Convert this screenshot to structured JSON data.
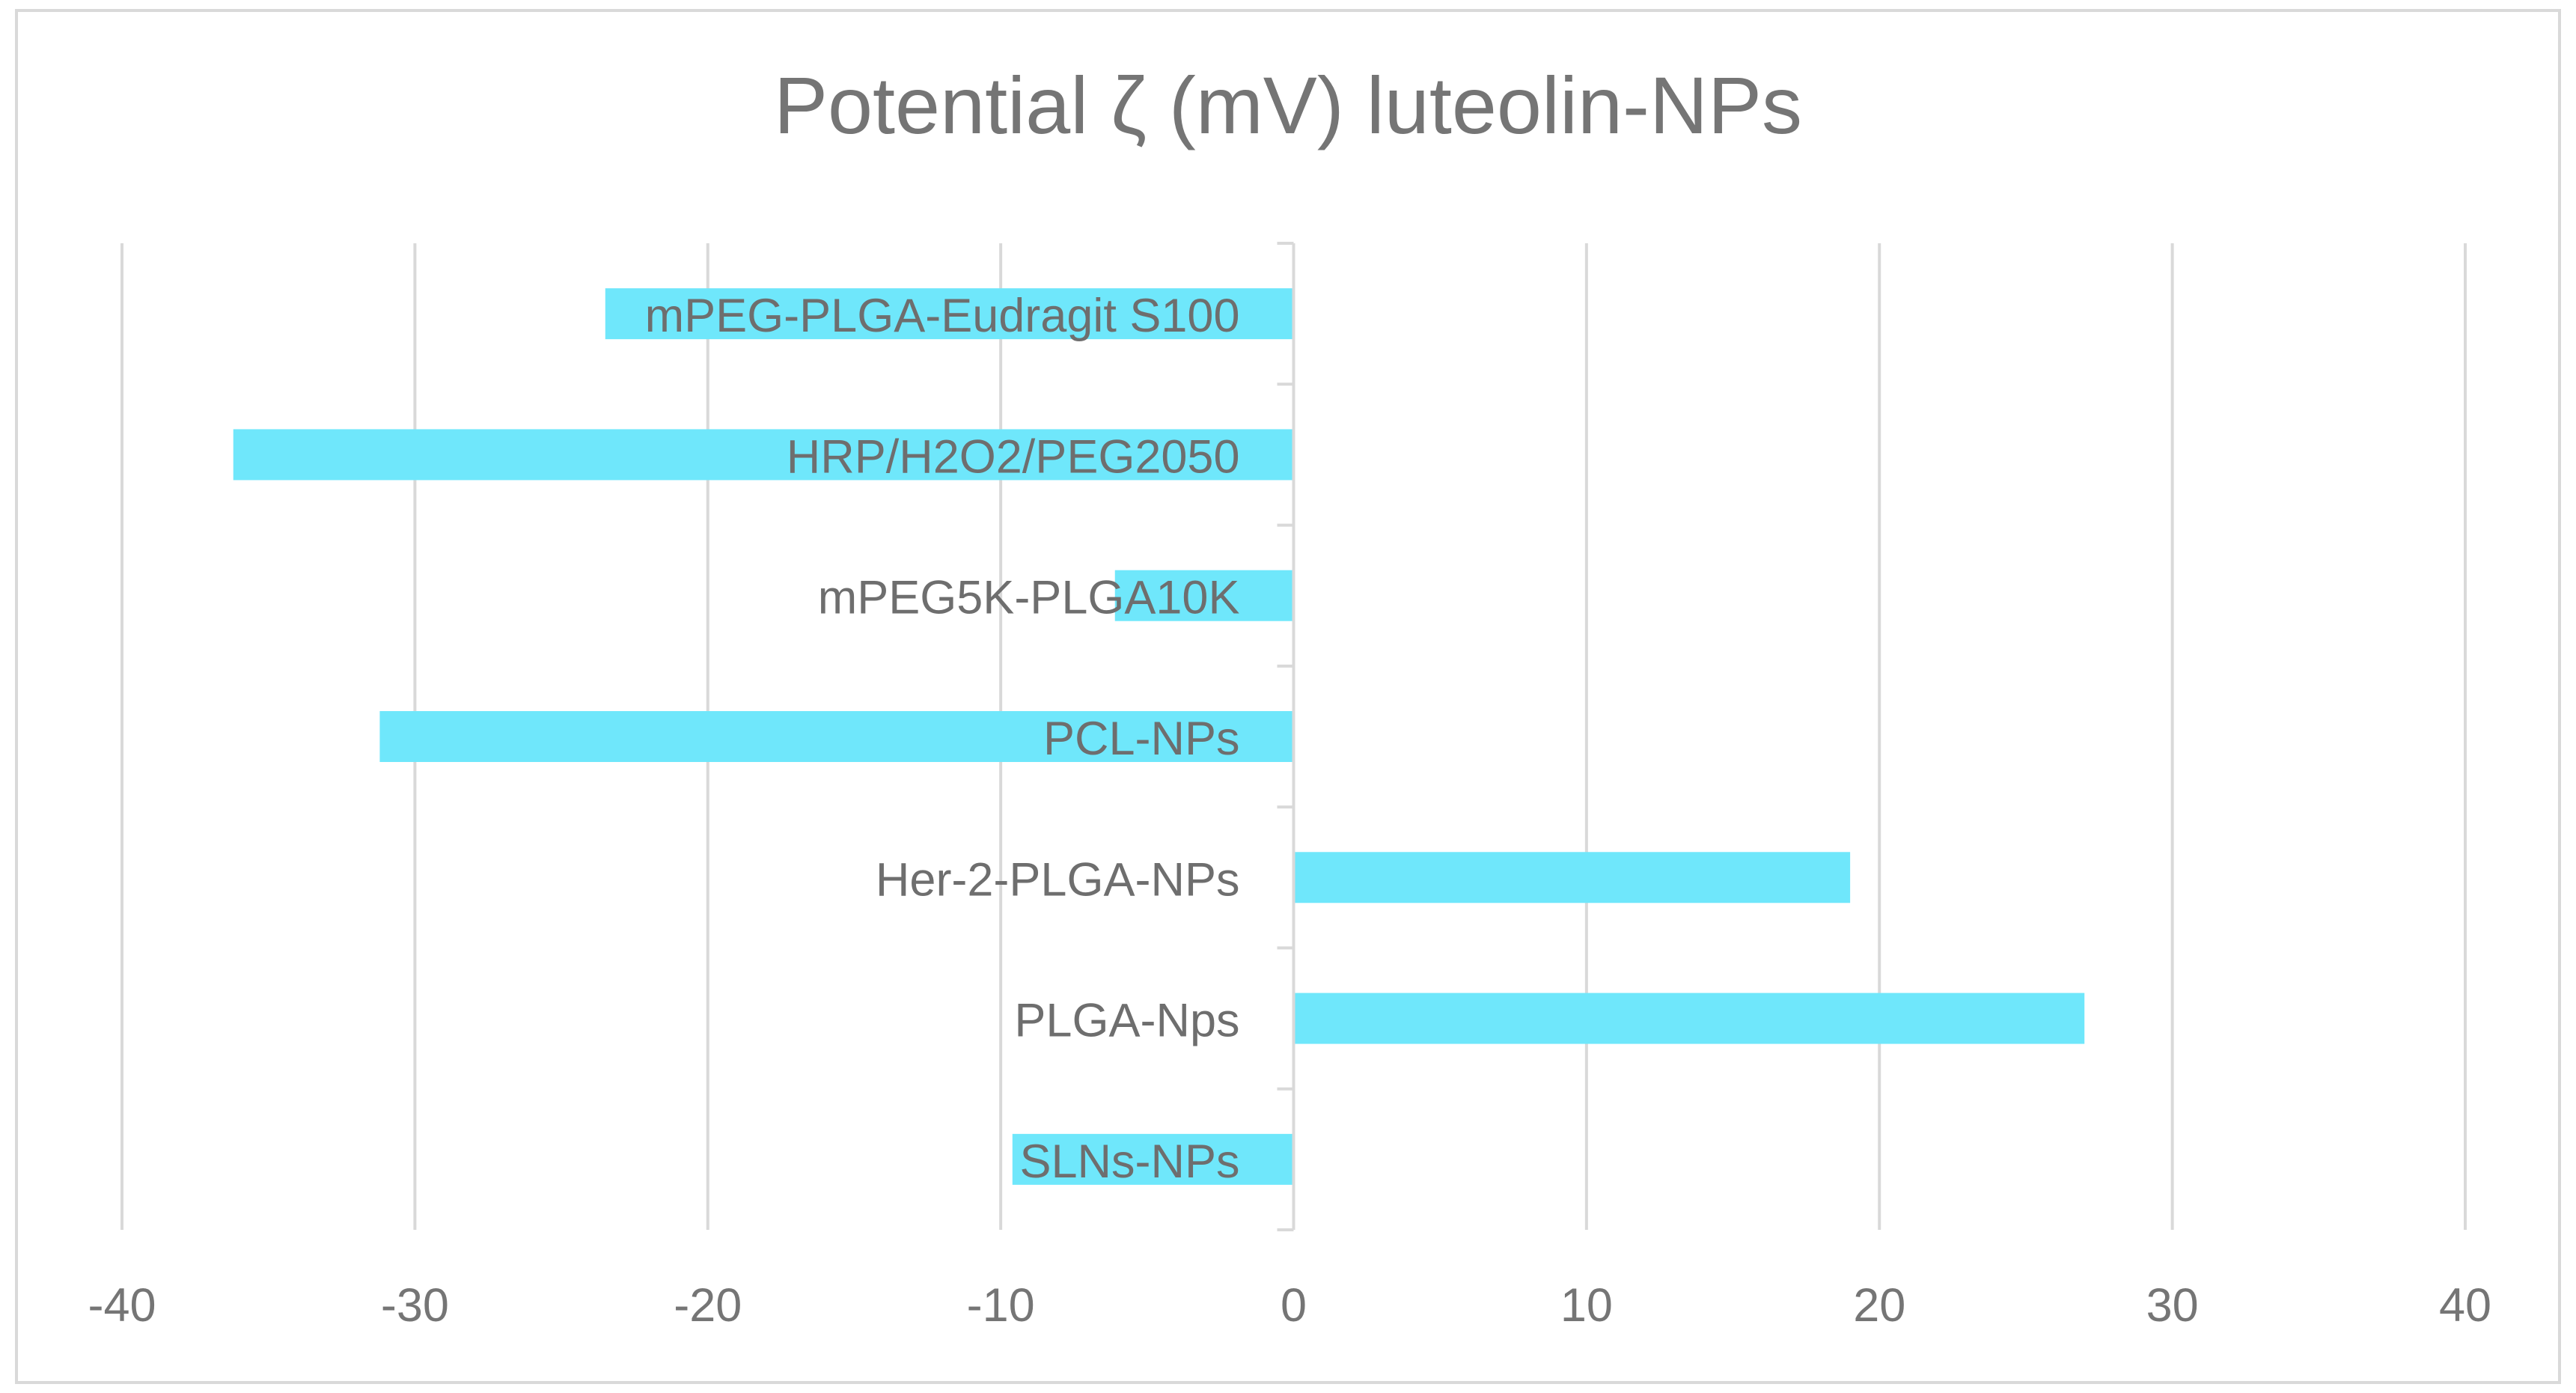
{
  "chart_data": {
    "type": "bar",
    "orientation": "horizontal",
    "title": "Potential ζ (mV) luteolin-NPs",
    "xlabel": "",
    "ylabel": "",
    "categories": [
      "mPEG-PLGA-Eudragit S100",
      "HRP/H2O2/PEG2050",
      "mPEG5K-PLGA10K",
      "PCL-NPs",
      "Her-2-PLGA-NPs",
      "PLGA-Nps",
      "SLNs-NPs"
    ],
    "values": [
      -23.5,
      -36.2,
      -6.1,
      -31.2,
      19.0,
      27.0,
      -9.6
    ],
    "xlim": [
      -40,
      40
    ],
    "xticks": [
      -40,
      -30,
      -20,
      -10,
      0,
      10,
      20,
      30,
      40
    ],
    "grid": "vertical",
    "legend": "none",
    "colors": {
      "bar": "#6fe7fb",
      "grid": "#d9d9d9",
      "text": "#757575",
      "border": "#d9d9d9"
    }
  }
}
